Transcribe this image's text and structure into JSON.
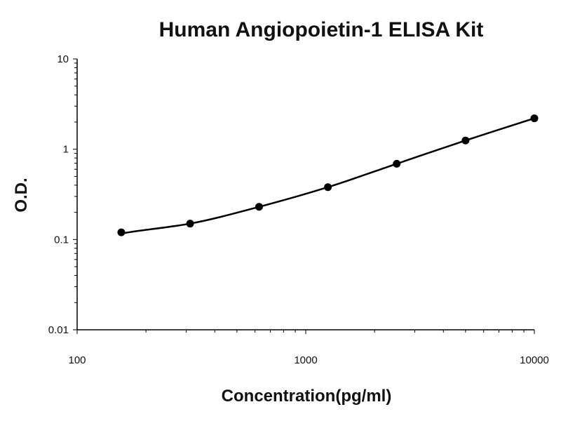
{
  "chart_data": {
    "type": "line",
    "title": "Human Angiopoietin-1 ELISA Kit",
    "xlabel": "Concentration(pg/ml)",
    "ylabel": "O.D.",
    "x_scale": "log",
    "y_scale": "log",
    "xlim": [
      100,
      10000
    ],
    "ylim": [
      0.01,
      10
    ],
    "x_ticks": [
      {
        "value": 100,
        "label": "100"
      },
      {
        "value": 1000,
        "label": "1000"
      },
      {
        "value": 10000,
        "label": "10000"
      }
    ],
    "y_ticks": [
      {
        "value": 10,
        "label": "10"
      },
      {
        "value": 1,
        "label": "1"
      },
      {
        "value": 0.1,
        "label": "0.1"
      },
      {
        "value": 0.01,
        "label": "0.01"
      }
    ],
    "grid": false,
    "legend": "none",
    "series": [
      {
        "x": [
          156,
          312,
          625,
          1250,
          2500,
          5000,
          10000
        ],
        "y": [
          0.12,
          0.15,
          0.23,
          0.38,
          0.69,
          1.25,
          2.2
        ],
        "color": "#000000"
      }
    ]
  }
}
